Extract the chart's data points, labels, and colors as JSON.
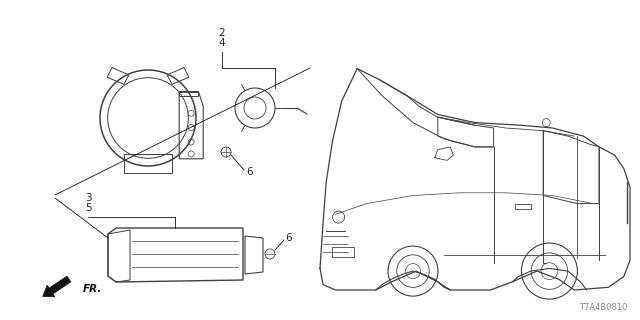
{
  "bg_color": "#ffffff",
  "line_color": "#404040",
  "dark": "#111111",
  "label_color": "#222222",
  "diagram_id": "T7A4B0810",
  "fig_w": 6.4,
  "fig_h": 3.2,
  "dpi": 100,
  "fr_text": "FR."
}
